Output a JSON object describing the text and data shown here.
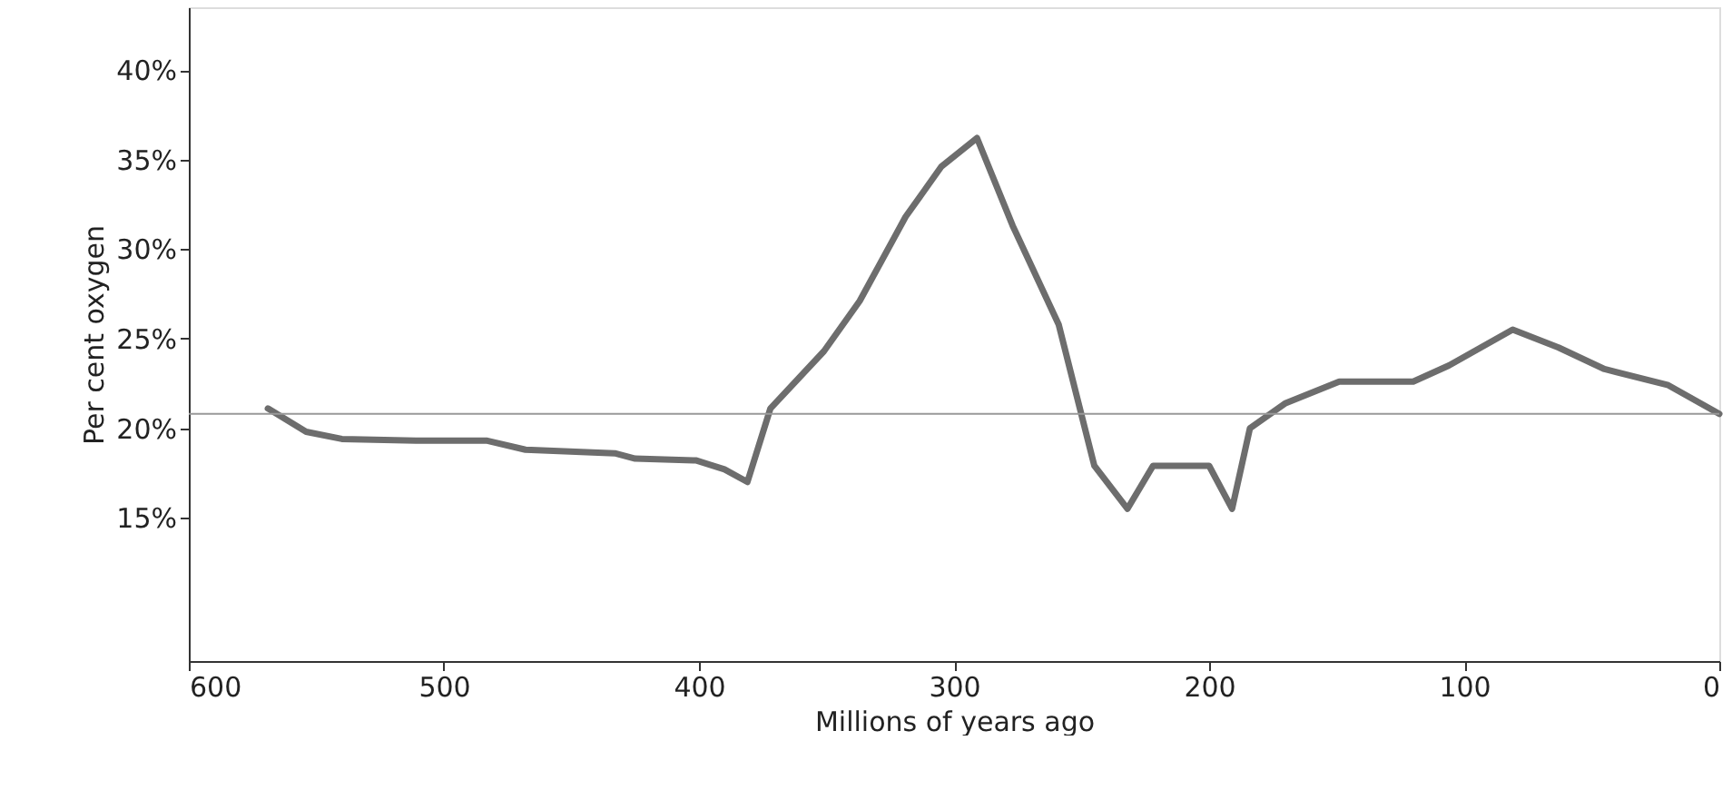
{
  "chart_data": {
    "type": "line",
    "xlabel": "Millions of years ago",
    "ylabel": "Per cent oxygen",
    "xlim": [
      600,
      0
    ],
    "xticks": [
      600,
      500,
      400,
      300,
      200,
      100,
      0
    ],
    "ylim": [
      7,
      43.5
    ],
    "yticks": [
      {
        "value": 15,
        "label": "15%"
      },
      {
        "value": 20,
        "label": "20%"
      },
      {
        "value": 25,
        "label": "25%"
      },
      {
        "value": 30,
        "label": "30%"
      },
      {
        "value": 35,
        "label": "35%"
      },
      {
        "value": 40,
        "label": "40%"
      }
    ],
    "grid": false,
    "marker": "none",
    "line_style": "solid",
    "ref_lines": [
      {
        "axis": "y",
        "value": 20.8,
        "color": "#999999"
      }
    ],
    "series": [
      {
        "color": "#6d6d6d",
        "x": [
          569,
          554,
          540,
          511,
          483,
          468,
          433,
          425,
          401,
          390,
          381,
          372,
          351,
          337,
          319,
          305,
          291,
          277,
          259,
          245,
          232,
          222,
          200,
          191,
          184,
          170,
          149,
          120,
          106,
          81,
          63,
          45,
          20,
          0
        ],
        "values": [
          21.1,
          19.8,
          19.4,
          19.3,
          19.3,
          18.8,
          18.6,
          18.3,
          18.2,
          17.7,
          17.0,
          21.1,
          24.3,
          27.1,
          31.8,
          34.6,
          36.2,
          31.3,
          25.8,
          17.9,
          15.5,
          17.9,
          17.9,
          15.5,
          20.0,
          21.4,
          22.6,
          22.6,
          23.5,
          25.5,
          24.5,
          23.3,
          22.4,
          20.8
        ]
      }
    ]
  }
}
